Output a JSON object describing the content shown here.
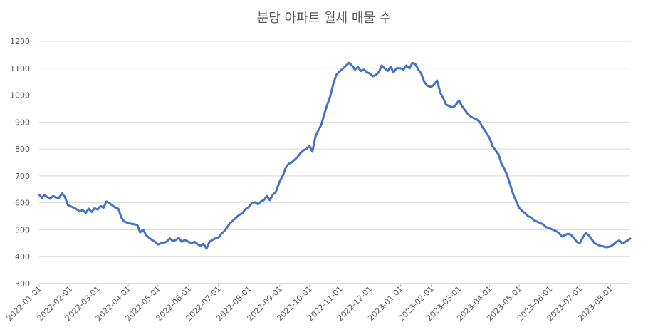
{
  "chart_data": {
    "type": "line",
    "title": "분당 아파트 월세 매물 수",
    "xlabel": "",
    "ylabel": "",
    "ylim": [
      300,
      1200
    ],
    "yticks": [
      300,
      400,
      500,
      600,
      700,
      800,
      900,
      1000,
      1100,
      1200
    ],
    "grid": true,
    "legend": "none",
    "x_range": [
      "2022-01-01",
      "2023-08-21"
    ],
    "xtick_labels": [
      "2022-01-01",
      "2022-02-01",
      "2022-03-01",
      "2022-04-01",
      "2022-05-01",
      "2022-06-01",
      "2022-07-01",
      "2022-08-01",
      "2022-09-01",
      "2022-10-01",
      "2022-11-01",
      "2022-12-01",
      "2023-01-01",
      "2023-02-01",
      "2023-03-01",
      "2023-04-01",
      "2023-05-01",
      "2023-06-01",
      "2023-07-01",
      "2023-08-01"
    ],
    "color": "#4472c4",
    "series": [
      {
        "name": "",
        "points": [
          [
            "2022-01-01",
            630
          ],
          [
            "2022-01-04",
            618
          ],
          [
            "2022-01-06",
            630
          ],
          [
            "2022-01-09",
            622
          ],
          [
            "2022-01-12",
            615
          ],
          [
            "2022-01-15",
            625
          ],
          [
            "2022-01-18",
            620
          ],
          [
            "2022-01-21",
            618
          ],
          [
            "2022-01-24",
            635
          ],
          [
            "2022-01-27",
            622
          ],
          [
            "2022-01-30",
            592
          ],
          [
            "2022-02-03",
            585
          ],
          [
            "2022-02-07",
            578
          ],
          [
            "2022-02-11",
            568
          ],
          [
            "2022-02-14",
            573
          ],
          [
            "2022-02-17",
            562
          ],
          [
            "2022-02-20",
            578
          ],
          [
            "2022-02-23",
            566
          ],
          [
            "2022-02-26",
            580
          ],
          [
            "2022-03-01",
            575
          ],
          [
            "2022-03-04",
            588
          ],
          [
            "2022-03-07",
            582
          ],
          [
            "2022-03-10",
            605
          ],
          [
            "2022-03-13",
            598
          ],
          [
            "2022-03-16",
            590
          ],
          [
            "2022-03-19",
            582
          ],
          [
            "2022-03-22",
            578
          ],
          [
            "2022-03-25",
            545
          ],
          [
            "2022-03-28",
            530
          ],
          [
            "2022-04-01",
            525
          ],
          [
            "2022-04-04",
            522
          ],
          [
            "2022-04-07",
            520
          ],
          [
            "2022-04-10",
            518
          ],
          [
            "2022-04-13",
            490
          ],
          [
            "2022-04-16",
            500
          ],
          [
            "2022-04-19",
            480
          ],
          [
            "2022-04-22",
            470
          ],
          [
            "2022-04-25",
            462
          ],
          [
            "2022-04-28",
            455
          ],
          [
            "2022-05-01",
            445
          ],
          [
            "2022-05-04",
            450
          ],
          [
            "2022-05-07",
            452
          ],
          [
            "2022-05-10",
            456
          ],
          [
            "2022-05-13",
            468
          ],
          [
            "2022-05-16",
            458
          ],
          [
            "2022-05-19",
            462
          ],
          [
            "2022-05-22",
            470
          ],
          [
            "2022-05-25",
            455
          ],
          [
            "2022-05-28",
            462
          ],
          [
            "2022-06-01",
            455
          ],
          [
            "2022-06-04",
            450
          ],
          [
            "2022-06-07",
            455
          ],
          [
            "2022-06-10",
            446
          ],
          [
            "2022-06-13",
            440
          ],
          [
            "2022-06-16",
            448
          ],
          [
            "2022-06-19",
            430
          ],
          [
            "2022-06-22",
            455
          ],
          [
            "2022-06-25",
            462
          ],
          [
            "2022-06-28",
            468
          ],
          [
            "2022-07-01",
            470
          ],
          [
            "2022-07-04",
            485
          ],
          [
            "2022-07-07",
            495
          ],
          [
            "2022-07-10",
            510
          ],
          [
            "2022-07-13",
            525
          ],
          [
            "2022-07-16",
            535
          ],
          [
            "2022-07-19",
            545
          ],
          [
            "2022-07-22",
            555
          ],
          [
            "2022-07-25",
            560
          ],
          [
            "2022-07-28",
            575
          ],
          [
            "2022-08-01",
            585
          ],
          [
            "2022-08-04",
            600
          ],
          [
            "2022-08-07",
            602
          ],
          [
            "2022-08-10",
            595
          ],
          [
            "2022-08-13",
            605
          ],
          [
            "2022-08-16",
            610
          ],
          [
            "2022-08-19",
            625
          ],
          [
            "2022-08-22",
            610
          ],
          [
            "2022-08-25",
            630
          ],
          [
            "2022-08-28",
            640
          ],
          [
            "2022-09-01",
            680
          ],
          [
            "2022-09-04",
            700
          ],
          [
            "2022-09-07",
            730
          ],
          [
            "2022-09-10",
            745
          ],
          [
            "2022-09-13",
            750
          ],
          [
            "2022-09-16",
            760
          ],
          [
            "2022-09-19",
            770
          ],
          [
            "2022-09-22",
            785
          ],
          [
            "2022-09-25",
            795
          ],
          [
            "2022-09-28",
            800
          ],
          [
            "2022-10-01",
            812
          ],
          [
            "2022-10-04",
            790
          ],
          [
            "2022-10-07",
            845
          ],
          [
            "2022-10-10",
            870
          ],
          [
            "2022-10-13",
            890
          ],
          [
            "2022-10-16",
            930
          ],
          [
            "2022-10-19",
            965
          ],
          [
            "2022-10-22",
            995
          ],
          [
            "2022-10-25",
            1040
          ],
          [
            "2022-10-28",
            1075
          ],
          [
            "2022-11-01",
            1090
          ],
          [
            "2022-11-04",
            1100
          ],
          [
            "2022-11-07",
            1110
          ],
          [
            "2022-11-10",
            1120
          ],
          [
            "2022-11-13",
            1110
          ],
          [
            "2022-11-16",
            1095
          ],
          [
            "2022-11-19",
            1105
          ],
          [
            "2022-11-22",
            1090
          ],
          [
            "2022-11-25",
            1095
          ],
          [
            "2022-11-28",
            1085
          ],
          [
            "2022-12-01",
            1080
          ],
          [
            "2022-12-04",
            1070
          ],
          [
            "2022-12-07",
            1075
          ],
          [
            "2022-12-10",
            1085
          ],
          [
            "2022-12-13",
            1110
          ],
          [
            "2022-12-16",
            1100
          ],
          [
            "2022-12-19",
            1090
          ],
          [
            "2022-12-22",
            1105
          ],
          [
            "2022-12-25",
            1085
          ],
          [
            "2022-12-28",
            1100
          ],
          [
            "2023-01-01",
            1100
          ],
          [
            "2023-01-04",
            1095
          ],
          [
            "2023-01-07",
            1110
          ],
          [
            "2023-01-10",
            1100
          ],
          [
            "2023-01-13",
            1120
          ],
          [
            "2023-01-16",
            1115
          ],
          [
            "2023-01-19",
            1095
          ],
          [
            "2023-01-22",
            1080
          ],
          [
            "2023-01-25",
            1050
          ],
          [
            "2023-01-28",
            1035
          ],
          [
            "2023-02-01",
            1030
          ],
          [
            "2023-02-04",
            1040
          ],
          [
            "2023-02-07",
            1055
          ],
          [
            "2023-02-10",
            1010
          ],
          [
            "2023-02-13",
            990
          ],
          [
            "2023-02-16",
            965
          ],
          [
            "2023-02-19",
            960
          ],
          [
            "2023-02-22",
            955
          ],
          [
            "2023-02-25",
            960
          ],
          [
            "2023-02-28",
            975
          ],
          [
            "2023-03-01",
            980
          ],
          [
            "2023-03-04",
            960
          ],
          [
            "2023-03-07",
            945
          ],
          [
            "2023-03-10",
            930
          ],
          [
            "2023-03-13",
            920
          ],
          [
            "2023-03-16",
            915
          ],
          [
            "2023-03-19",
            910
          ],
          [
            "2023-03-22",
            900
          ],
          [
            "2023-03-25",
            880
          ],
          [
            "2023-03-28",
            865
          ],
          [
            "2023-04-01",
            840
          ],
          [
            "2023-04-04",
            810
          ],
          [
            "2023-04-07",
            795
          ],
          [
            "2023-04-10",
            780
          ],
          [
            "2023-04-13",
            745
          ],
          [
            "2023-04-16",
            725
          ],
          [
            "2023-04-19",
            700
          ],
          [
            "2023-04-22",
            665
          ],
          [
            "2023-04-25",
            630
          ],
          [
            "2023-04-28",
            605
          ],
          [
            "2023-05-01",
            580
          ],
          [
            "2023-05-04",
            570
          ],
          [
            "2023-05-07",
            560
          ],
          [
            "2023-05-10",
            550
          ],
          [
            "2023-05-13",
            545
          ],
          [
            "2023-05-16",
            535
          ],
          [
            "2023-05-19",
            530
          ],
          [
            "2023-05-22",
            525
          ],
          [
            "2023-05-25",
            520
          ],
          [
            "2023-05-28",
            510
          ],
          [
            "2023-06-01",
            505
          ],
          [
            "2023-06-04",
            500
          ],
          [
            "2023-06-07",
            495
          ],
          [
            "2023-06-10",
            488
          ],
          [
            "2023-06-13",
            475
          ],
          [
            "2023-06-16",
            480
          ],
          [
            "2023-06-19",
            485
          ],
          [
            "2023-06-22",
            482
          ],
          [
            "2023-06-25",
            470
          ],
          [
            "2023-06-28",
            455
          ],
          [
            "2023-07-01",
            450
          ],
          [
            "2023-07-04",
            470
          ],
          [
            "2023-07-07",
            488
          ],
          [
            "2023-07-10",
            480
          ],
          [
            "2023-07-13",
            465
          ],
          [
            "2023-07-16",
            450
          ],
          [
            "2023-07-19",
            445
          ],
          [
            "2023-07-22",
            440
          ],
          [
            "2023-07-25",
            438
          ],
          [
            "2023-07-28",
            435
          ],
          [
            "2023-08-01",
            438
          ],
          [
            "2023-08-04",
            445
          ],
          [
            "2023-08-07",
            455
          ],
          [
            "2023-08-10",
            460
          ],
          [
            "2023-08-13",
            450
          ],
          [
            "2023-08-16",
            455
          ],
          [
            "2023-08-19",
            462
          ],
          [
            "2023-08-21",
            467
          ]
        ]
      }
    ]
  }
}
